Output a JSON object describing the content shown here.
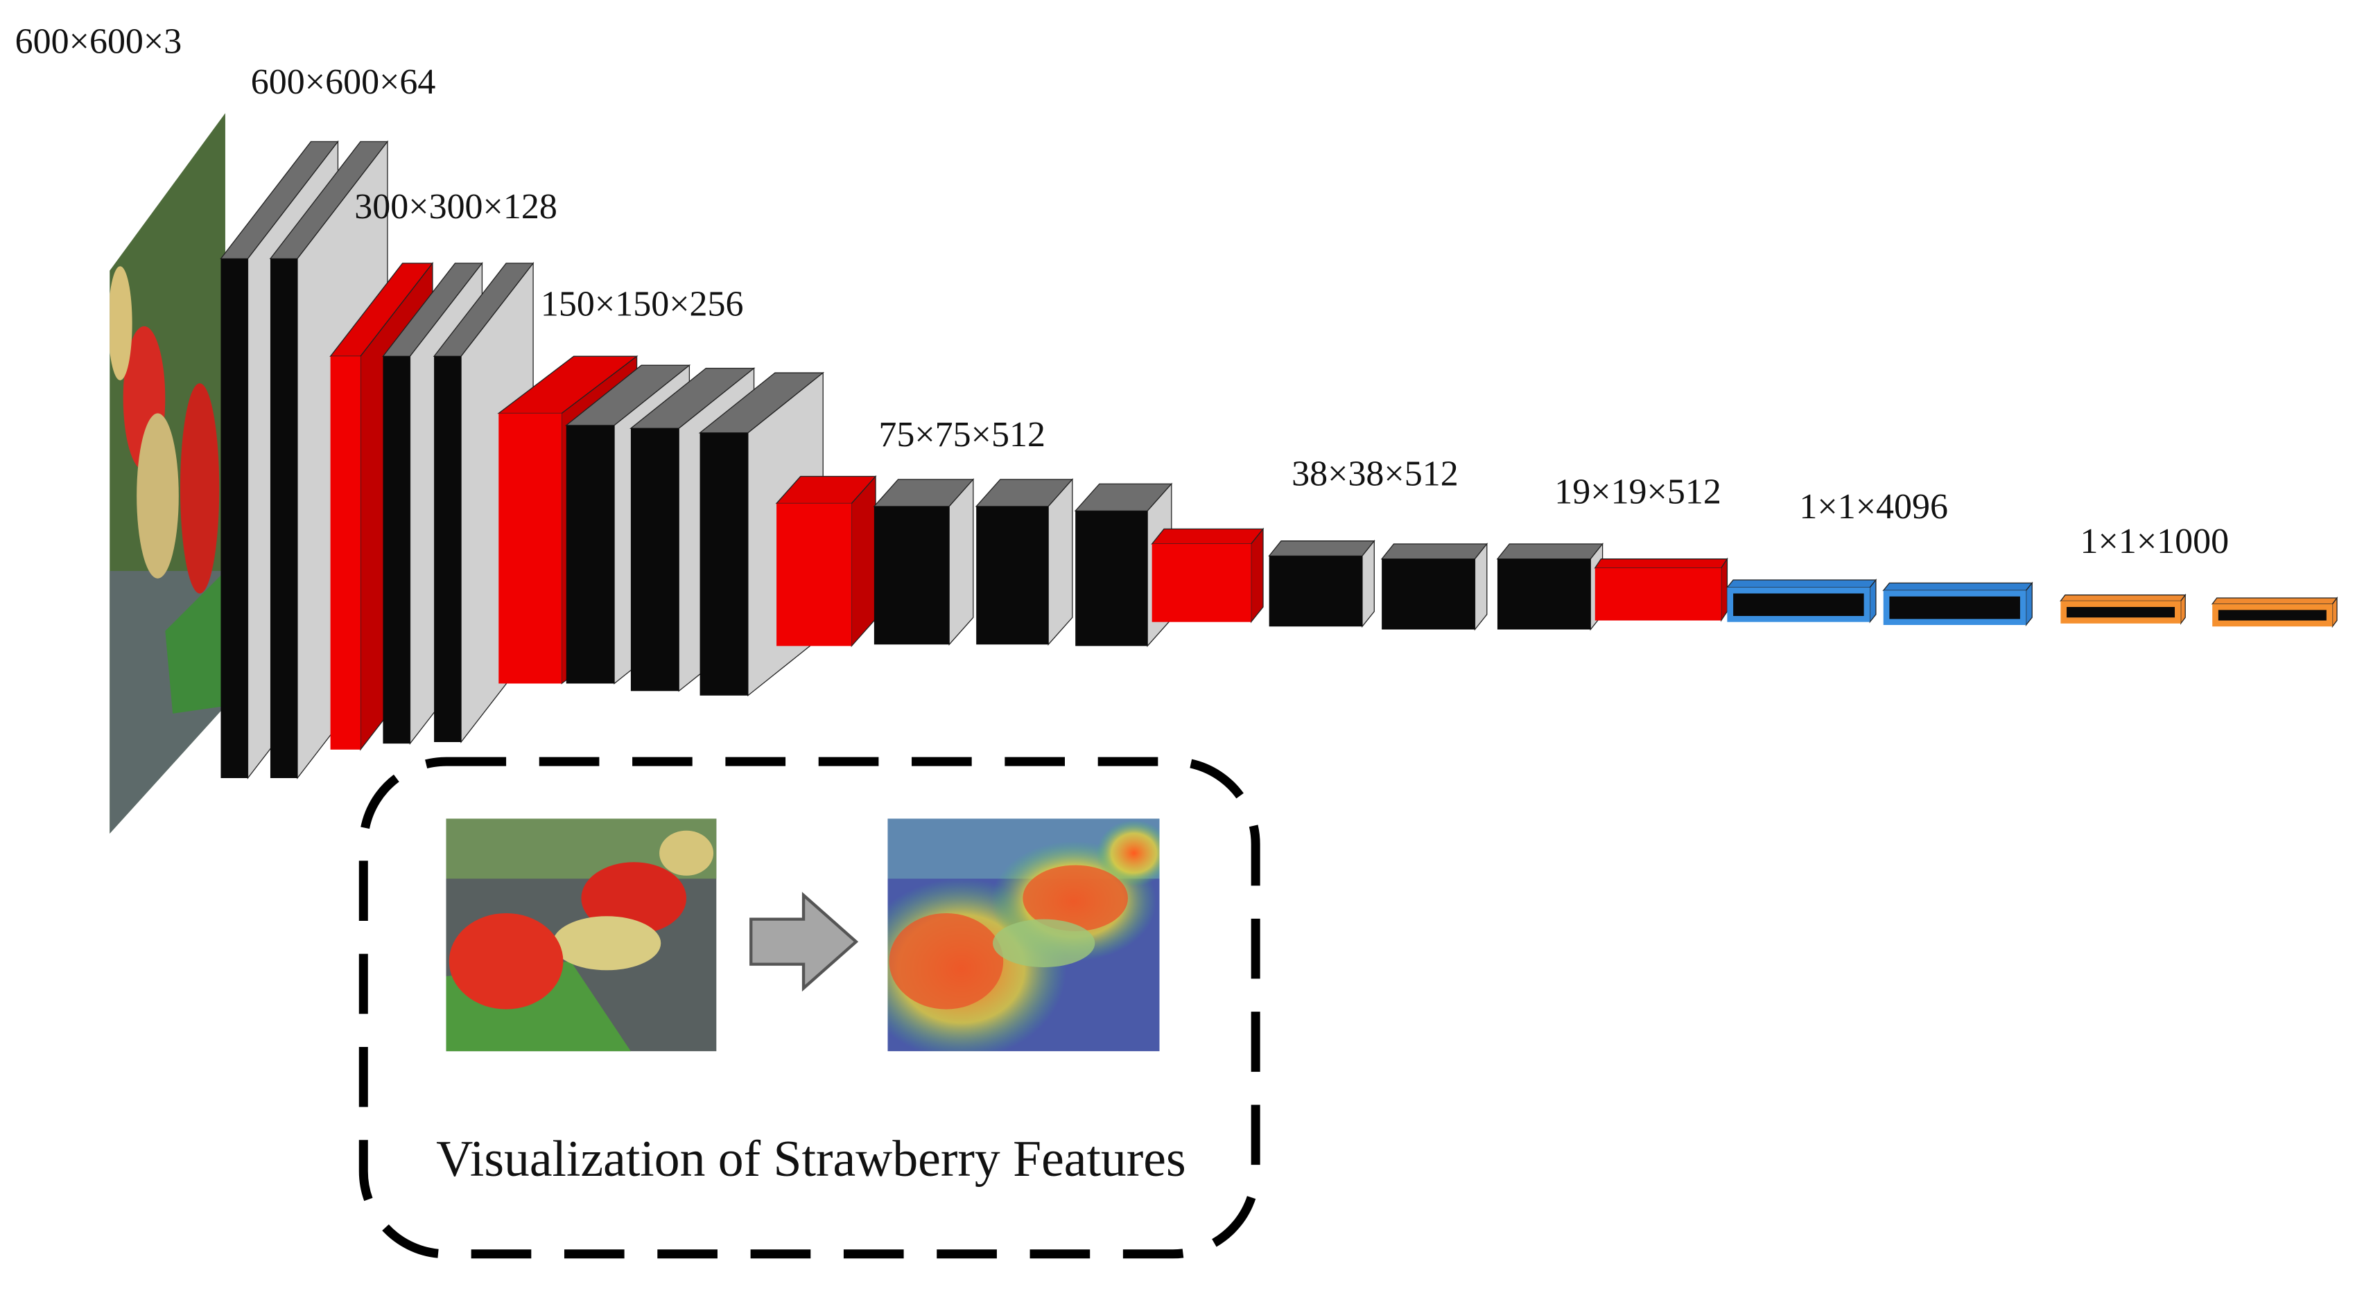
{
  "dimension_labels": [
    "600×600×3",
    "600×600×64",
    "300×300×128",
    "150×150×256",
    "75×75×512",
    "38×38×512",
    "19×19×512",
    "1×1×4096",
    "1×1×1000"
  ],
  "caption": "Visualization of Strawberry Features"
}
